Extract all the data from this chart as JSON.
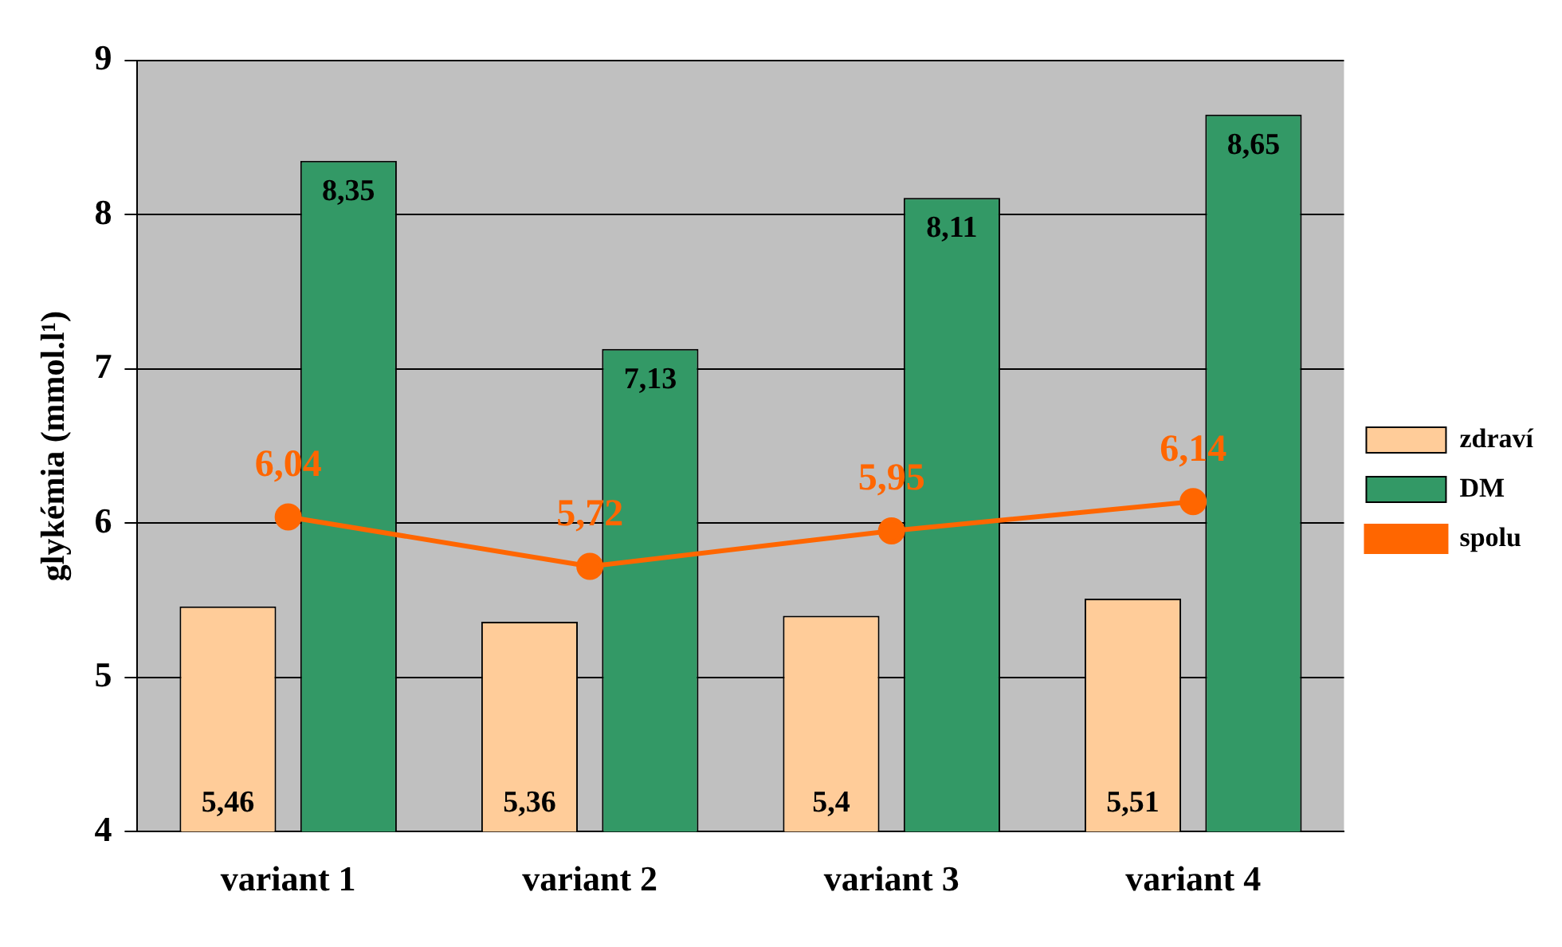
{
  "chart_data": {
    "type": "bar",
    "ylabel": "glykémia (mmol.l¹)",
    "categories": [
      "variant 1",
      "variant 2",
      "variant 3",
      "variant 4"
    ],
    "series": [
      {
        "name": "zdraví",
        "color": "#ffcc99",
        "values": [
          5.46,
          5.36,
          5.4,
          5.51
        ],
        "value_labels": [
          "5,46",
          "5,36",
          "5,4",
          "5,51"
        ]
      },
      {
        "name": "DM",
        "color": "#339966",
        "values": [
          8.35,
          7.13,
          8.11,
          8.65
        ],
        "value_labels": [
          "8,35",
          "7,13",
          "8,11",
          "8,65"
        ]
      },
      {
        "name": "spolu",
        "type": "line",
        "color": "#ff6600",
        "marker": "circle",
        "values": [
          6.04,
          5.72,
          5.95,
          6.14
        ],
        "value_labels": [
          "6,04",
          "5,72",
          "5,95",
          "6,14"
        ]
      }
    ],
    "ylim": [
      4,
      9
    ],
    "yticks": [
      4,
      5,
      6,
      7,
      8,
      9
    ],
    "grid": "y",
    "legend": "right"
  }
}
